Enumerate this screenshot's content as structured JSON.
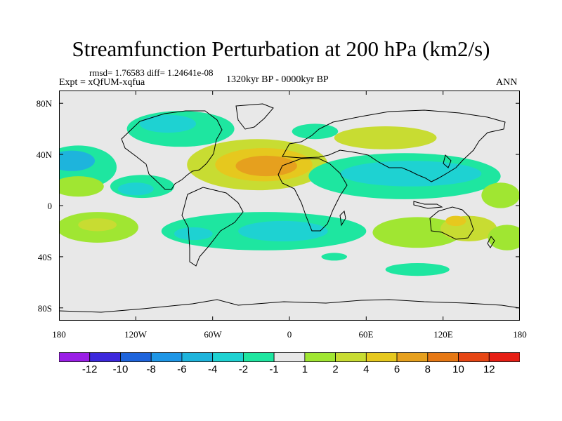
{
  "title": "Streamfunction Perturbation at 200 hPa (km2/s)",
  "stats": {
    "rmsd_text": "rmsd= 1.76583 diff= 1.24641e-08"
  },
  "experiment": "Expt = xQfUM-xqfua",
  "period": "1320kyr BP - 0000kyr BP",
  "season": "ANN",
  "map": {
    "lat_labels": [
      "80N",
      "40N",
      "0",
      "40S",
      "80S"
    ],
    "lon_labels": [
      "180",
      "120W",
      "60W",
      "0",
      "60E",
      "120E",
      "180"
    ],
    "background_color": "#e8e8e8"
  },
  "colorbar": {
    "labels": [
      "-12",
      "-10",
      "-8",
      "-6",
      "-4",
      "-2",
      "-1",
      "1",
      "2",
      "4",
      "6",
      "8",
      "10",
      "12"
    ],
    "colors": [
      "#9a1ee6",
      "#3c28dc",
      "#1e64dc",
      "#1e96e6",
      "#1eb4dc",
      "#1ed2d2",
      "#1ee6a0",
      "#e8e8e8",
      "#a0e632",
      "#c8dc32",
      "#e6c81e",
      "#e6a01e",
      "#e67814",
      "#e64614",
      "#e61e14"
    ]
  },
  "regions": [
    {
      "label": "N Atlantic/Africa high",
      "color": "#c8dc32",
      "lon": -25,
      "lat": 32,
      "rx": 55,
      "ry": 20
    },
    {
      "label": "Sahara core 1",
      "color": "#e6c81e",
      "lon": -20,
      "lat": 32,
      "rx": 38,
      "ry": 13
    },
    {
      "label": "Sahara core 2",
      "color": "#e6a01e",
      "lon": -18,
      "lat": 31,
      "rx": 24,
      "ry": 8
    },
    {
      "label": "N Pacific low",
      "color": "#1ee6a0",
      "lon": -165,
      "lat": 30,
      "rx": 30,
      "ry": 17
    },
    {
      "label": "N Pacific low core",
      "color": "#1eb4dc",
      "lon": -170,
      "lat": 35,
      "rx": 18,
      "ry": 8
    },
    {
      "label": "E Pacific high",
      "color": "#a0e632",
      "lon": -165,
      "lat": 15,
      "rx": 20,
      "ry": 8
    },
    {
      "label": "Central Pacific low",
      "color": "#1ee6a0",
      "lon": -115,
      "lat": 15,
      "rx": 25,
      "ry": 9
    },
    {
      "label": "Central Pacific low core",
      "color": "#1ed2d2",
      "lon": -120,
      "lat": 13,
      "rx": 14,
      "ry": 5
    },
    {
      "label": "Canada low",
      "color": "#1ee6a0",
      "lon": -85,
      "lat": 60,
      "rx": 42,
      "ry": 14
    },
    {
      "label": "Canada low core",
      "color": "#1ed2d2",
      "lon": -95,
      "lat": 64,
      "rx": 22,
      "ry": 7
    },
    {
      "label": "Asia low band",
      "color": "#1ee6a0",
      "lon": 90,
      "lat": 23,
      "rx": 75,
      "ry": 18
    },
    {
      "label": "Asia low core",
      "color": "#1ed2d2",
      "lon": 95,
      "lat": 25,
      "rx": 55,
      "ry": 10
    },
    {
      "label": "Central Asia high",
      "color": "#c8dc32",
      "lon": 75,
      "lat": 53,
      "rx": 40,
      "ry": 9
    },
    {
      "label": "Siberia low",
      "color": "#1ee6a0",
      "lon": 20,
      "lat": 58,
      "rx": 18,
      "ry": 6
    },
    {
      "label": "W Pacific high",
      "color": "#a0e632",
      "lon": 165,
      "lat": 8,
      "rx": 15,
      "ry": 10
    },
    {
      "label": "S Pacific high",
      "color": "#a0e632",
      "lon": -150,
      "lat": -17,
      "rx": 32,
      "ry": 12
    },
    {
      "label": "S Pacific high core",
      "color": "#c8dc32",
      "lon": -150,
      "lat": -15,
      "rx": 15,
      "ry": 5
    },
    {
      "label": "S Atlantic low",
      "color": "#1ee6a0",
      "lon": -20,
      "lat": -20,
      "rx": 80,
      "ry": 15
    },
    {
      "label": "S Atlantic low core",
      "color": "#1ed2d2",
      "lon": -5,
      "lat": -20,
      "rx": 35,
      "ry": 8
    },
    {
      "label": "S America low core",
      "color": "#1ed2d2",
      "lon": -75,
      "lat": -22,
      "rx": 15,
      "ry": 5
    },
    {
      "label": "Indian Ocean high",
      "color": "#a0e632",
      "lon": 100,
      "lat": -21,
      "rx": 35,
      "ry": 12
    },
    {
      "label": "Australia high",
      "color": "#c8dc32",
      "lon": 140,
      "lat": -18,
      "rx": 22,
      "ry": 10
    },
    {
      "label": "Australia high core",
      "color": "#e6c81e",
      "lon": 130,
      "lat": -12,
      "rx": 8,
      "ry": 4
    },
    {
      "label": "SE Pacific high",
      "color": "#a0e632",
      "lon": 170,
      "lat": -25,
      "rx": 15,
      "ry": 10
    },
    {
      "label": "Southern Ocean low",
      "color": "#1ee6a0",
      "lon": 100,
      "lat": -50,
      "rx": 25,
      "ry": 5
    },
    {
      "label": "S Indian low",
      "color": "#1ee6a0",
      "lon": 35,
      "lat": -40,
      "rx": 10,
      "ry": 3
    }
  ]
}
